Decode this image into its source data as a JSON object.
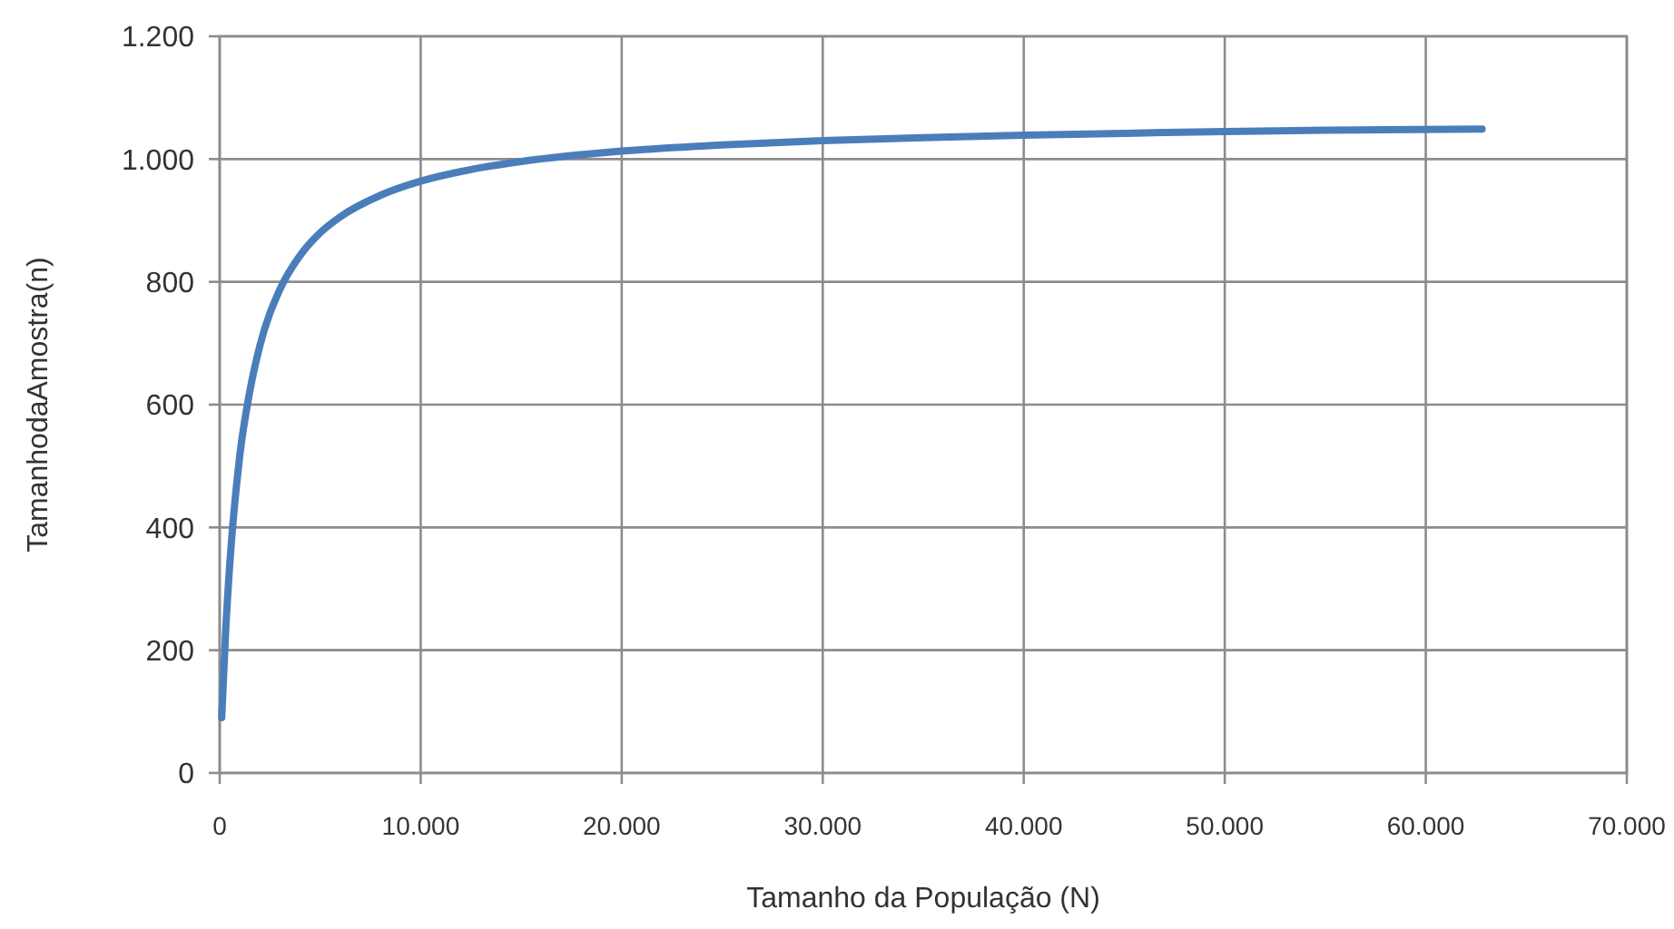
{
  "chart_data": {
    "type": "line",
    "xlabel": "Tamanho  da População  (N)",
    "ylabel": "TamanhodaAmostra(n)",
    "x": [
      100,
      300,
      500,
      1000,
      1500,
      2000,
      3000,
      4000,
      5000,
      6000,
      8000,
      10000,
      12500,
      15000,
      20000,
      25000,
      30000,
      35000,
      40000,
      45000,
      50000,
      55000,
      62800
    ],
    "series": [
      {
        "color": "#4a7ebb",
        "values": [
          90,
          233,
          340,
          517,
          622,
          696,
          788,
          843,
          880,
          906,
          941,
          964,
          983,
          996,
          1013,
          1023,
          1030,
          1035,
          1039,
          1042,
          1045,
          1047,
          1049
        ]
      }
    ],
    "xlim": [
      0,
      70000
    ],
    "xticks": [
      0,
      {
        "value": 10000,
        "label": "10.000"
      },
      {
        "value": 20000,
        "label": "20.000"
      },
      {
        "value": 30000,
        "label": "30.000"
      },
      {
        "value": 40000,
        "label": "40.000"
      },
      {
        "value": 50000,
        "label": "50.000"
      },
      {
        "value": 60000,
        "label": "60.000"
      },
      {
        "value": 70000,
        "label": "70.000"
      }
    ],
    "ylim": [
      0,
      1200
    ],
    "yticks": [
      0,
      200,
      400,
      600,
      800,
      {
        "value": 1000,
        "label": "1.000"
      },
      {
        "value": 1200,
        "label": "1.200"
      }
    ],
    "grid": true,
    "marker": "none",
    "line_style": "solid"
  }
}
